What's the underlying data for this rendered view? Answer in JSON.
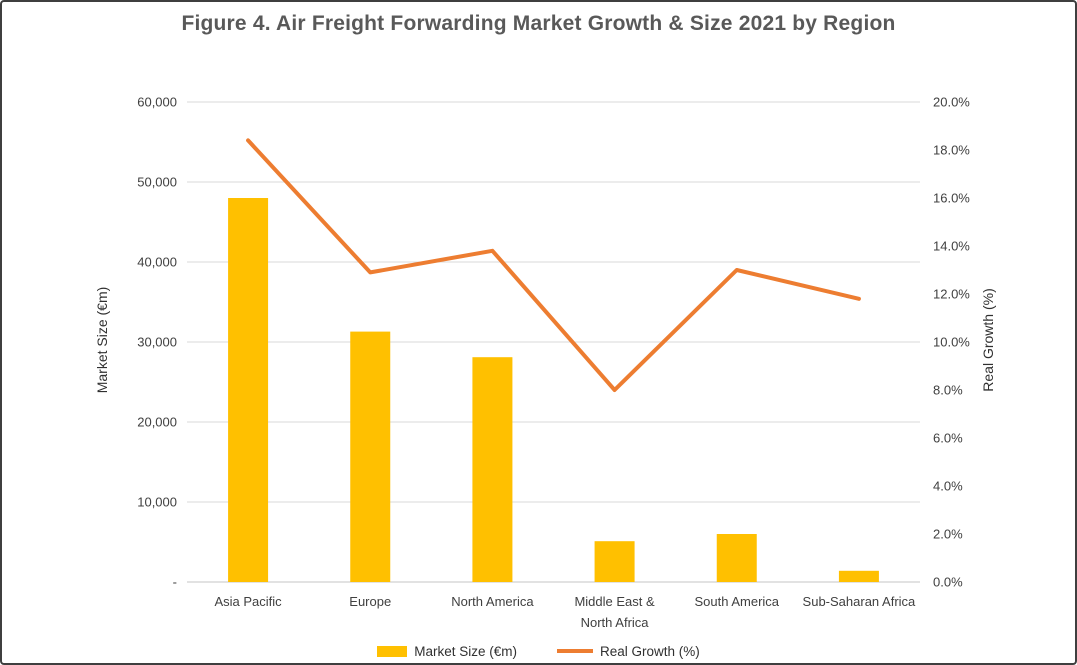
{
  "window": {
    "background": "#ffffff",
    "border_color": "#3f3f3f"
  },
  "chart_data": {
    "type": "bar",
    "subtype": "bar-line-combo",
    "title": "Figure 4. Air Freight Forwarding Market Growth & Size 2021 by Region",
    "title_color": "#595959",
    "categories": [
      "Asia Pacific",
      "Europe",
      "North America",
      "Middle East & North Africa",
      "South America",
      "Sub-Saharan Africa"
    ],
    "category_label_lines": [
      [
        "Asia Pacific"
      ],
      [
        "Europe"
      ],
      [
        "North America"
      ],
      [
        "Middle East &",
        "North Africa"
      ],
      [
        "South America"
      ],
      [
        "Sub-Saharan Africa"
      ]
    ],
    "series": [
      {
        "name": "Market Size (€m)",
        "type": "bar",
        "axis": "left",
        "color": "#FFC000",
        "values": [
          48000,
          31300,
          28100,
          5100,
          6000,
          1400
        ]
      },
      {
        "name": "Real Growth (%)",
        "type": "line",
        "axis": "right",
        "color": "#ED7D31",
        "values": [
          18.4,
          12.9,
          13.8,
          8.0,
          13.0,
          11.8
        ]
      }
    ],
    "left_axis": {
      "title": "Market Size (€m)",
      "min": 0,
      "max": 60000,
      "tick_interval": 10000,
      "tick_labels": [
        "-",
        "10,000",
        "20,000",
        "30,000",
        "40,000",
        "50,000",
        "60,000"
      ]
    },
    "right_axis": {
      "title": "Real Growth (%)",
      "min": 0,
      "max": 20,
      "tick_interval": 2,
      "tick_labels": [
        "0.0%",
        "2.0%",
        "4.0%",
        "6.0%",
        "8.0%",
        "10.0%",
        "12.0%",
        "14.0%",
        "16.0%",
        "18.0%",
        "20.0%"
      ]
    },
    "gridlines": {
      "show": true,
      "color": "#d9d9d9",
      "aligned_to": "left-axis-ticks"
    },
    "axis_line_color": "#d9d9d9",
    "tick_label_color": "#404040",
    "legend": {
      "position": "bottom",
      "entries": [
        "Market Size (€m)",
        "Real Growth (%)"
      ]
    }
  }
}
